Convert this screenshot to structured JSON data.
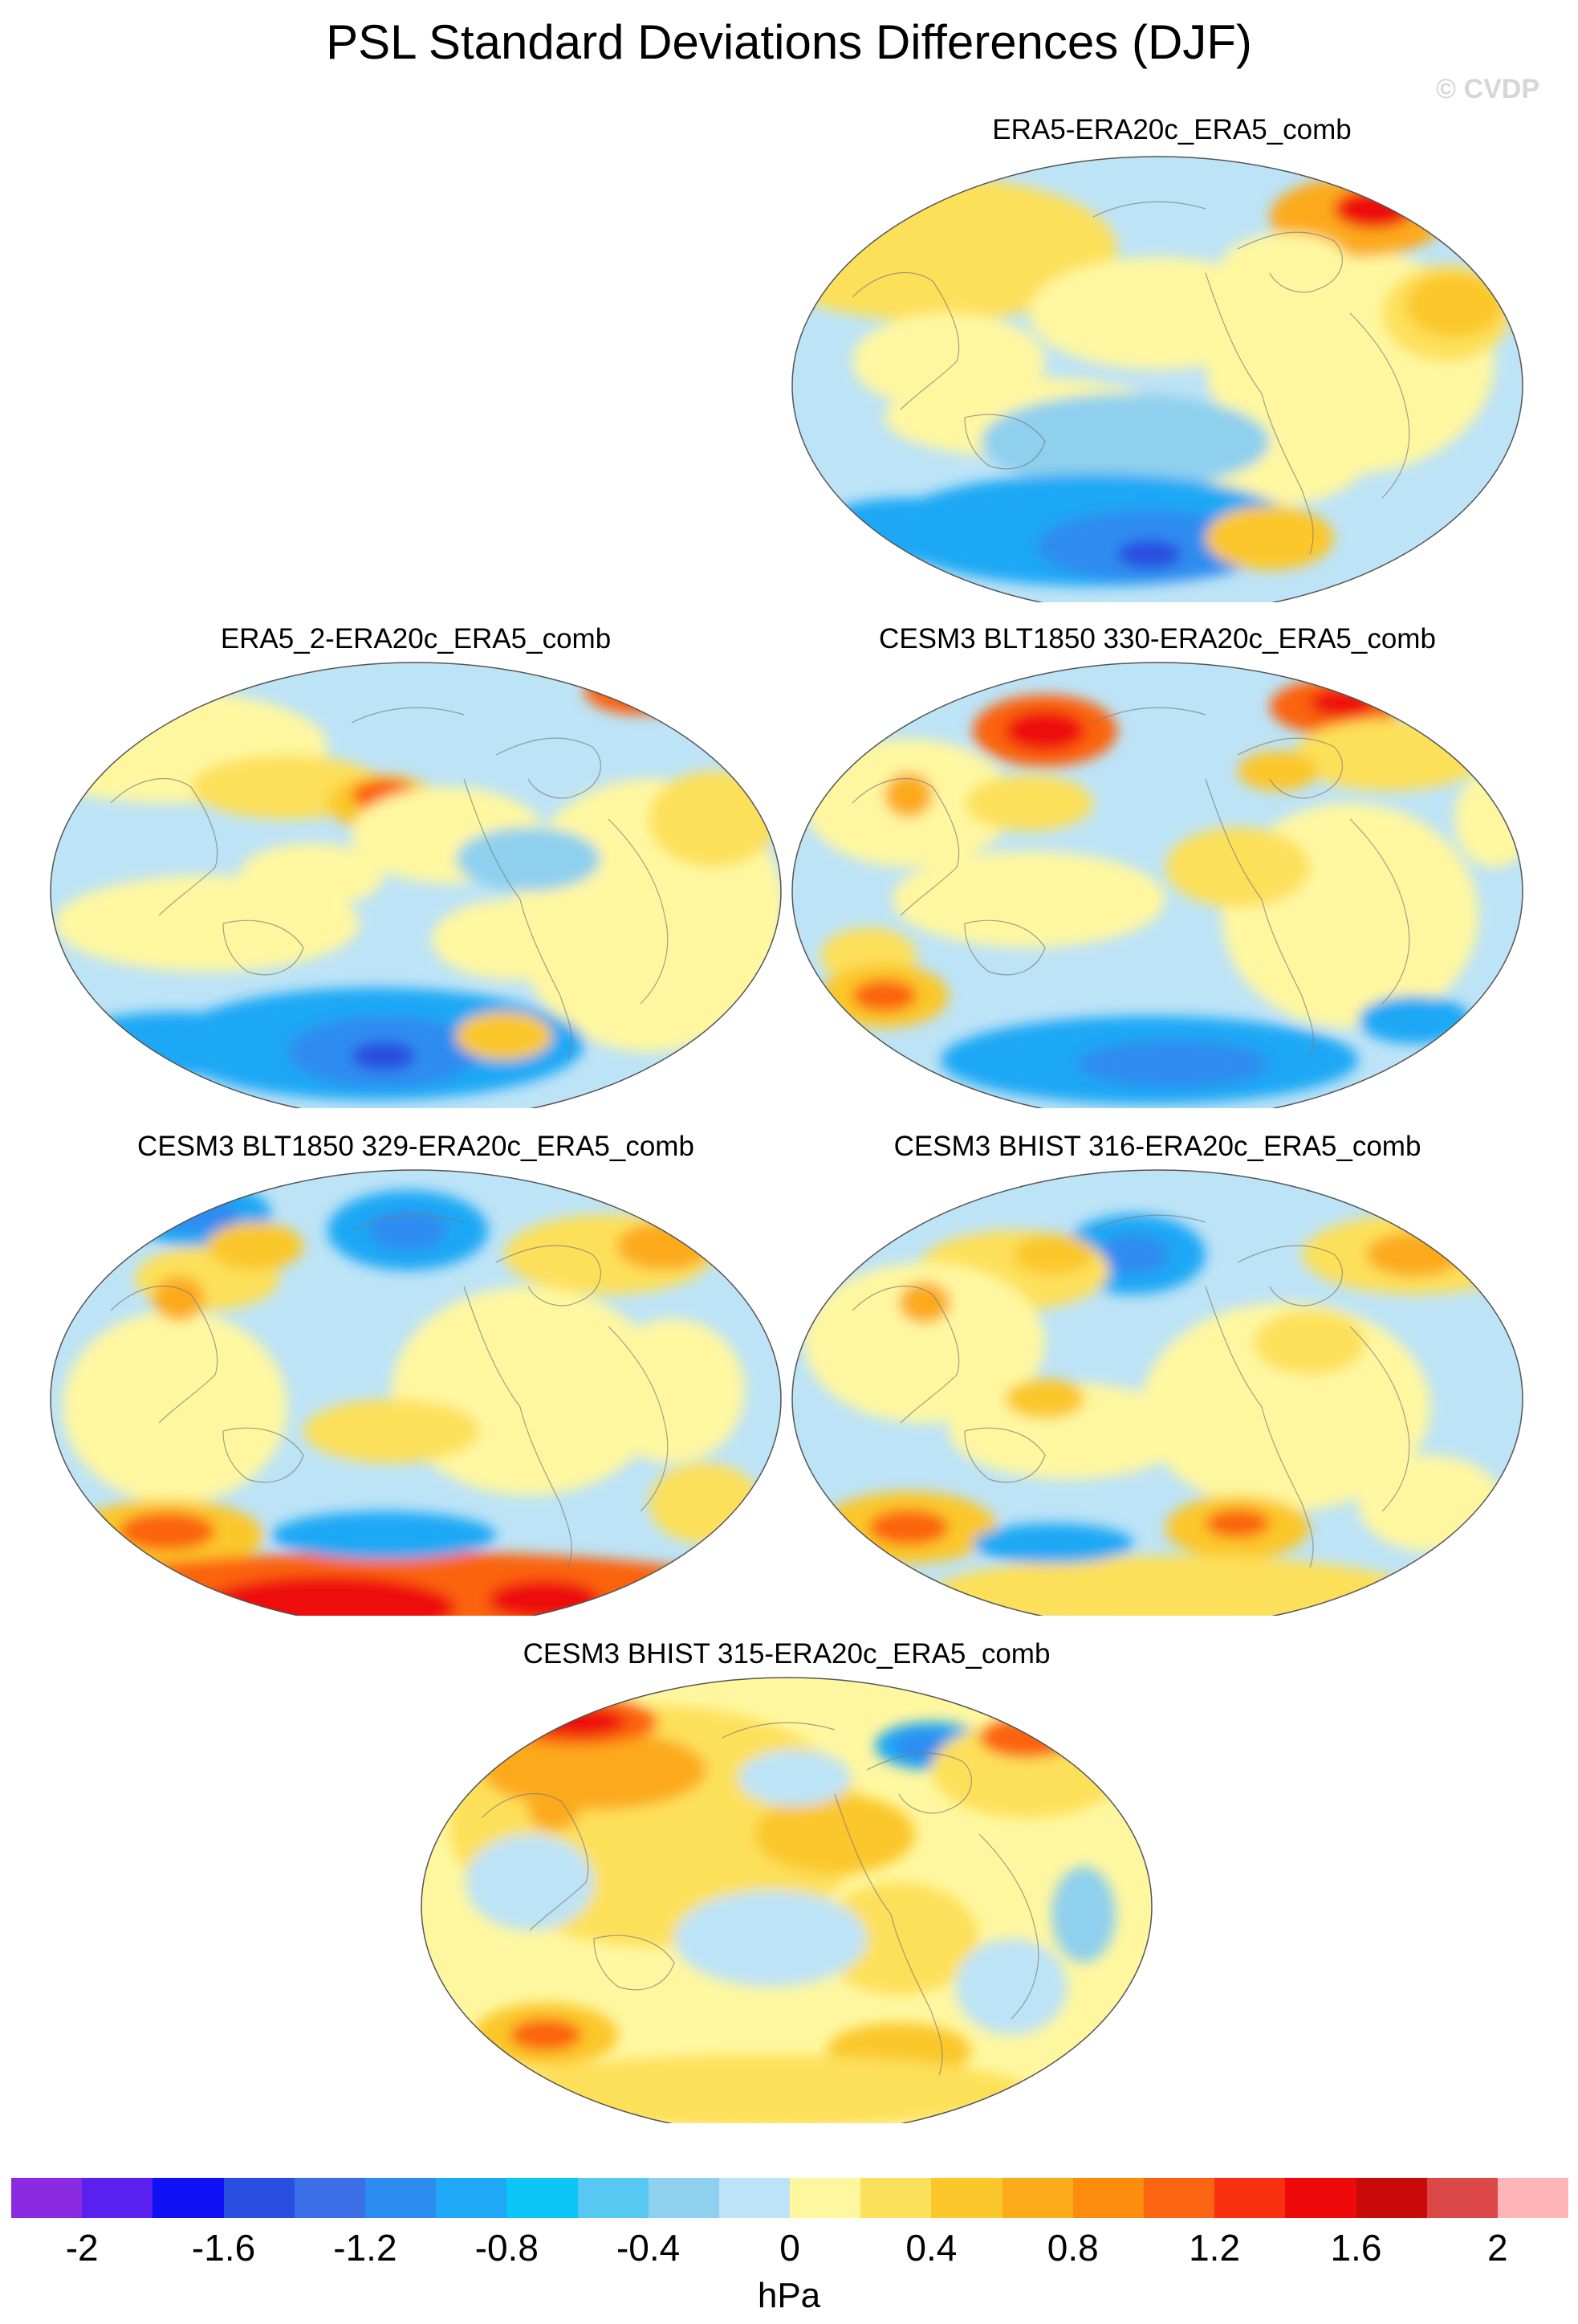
{
  "title": "PSL Standard Deviations Differences (DJF)",
  "watermark": "© CVDP",
  "panels": [
    {
      "title": "ERA5-ERA20c_ERA5_comb"
    },
    {
      "title": "ERA5_2-ERA20c_ERA5_comb"
    },
    {
      "title": "CESM3 BLT1850 330-ERA20c_ERA5_comb"
    },
    {
      "title": "CESM3 BLT1850 329-ERA20c_ERA5_comb"
    },
    {
      "title": "CESM3 BHIST 316-ERA20c_ERA5_comb"
    },
    {
      "title": "CESM3 BHIST 315-ERA20c_ERA5_comb"
    }
  ],
  "colorbar": {
    "units": "hPa",
    "tick_labels": [
      "-2",
      "-1.6",
      "-1.2",
      "-0.8",
      "-0.4",
      "0",
      "0.4",
      "0.8",
      "1.2",
      "1.6",
      "2"
    ],
    "tick_values": [
      -2,
      -1.6,
      -1.2,
      -0.8,
      -0.4,
      0,
      0.4,
      0.8,
      1.2,
      1.6,
      2
    ],
    "range": [
      -2.2,
      2.2
    ],
    "colors": [
      "#8a2be2",
      "#5a20f0",
      "#1010f5",
      "#2a4ee0",
      "#3c6ee8",
      "#2d8cf0",
      "#1ea8f5",
      "#0cc6f8",
      "#56c8f2",
      "#8fd0ee",
      "#bde3f6",
      "#fff7a0",
      "#fde05a",
      "#fbc72a",
      "#fcaa1a",
      "#fb8c0c",
      "#fb6410",
      "#fa2f10",
      "#ee0a0a",
      "#c80a0a",
      "#dc4848",
      "#ffb4b8"
    ]
  }
}
